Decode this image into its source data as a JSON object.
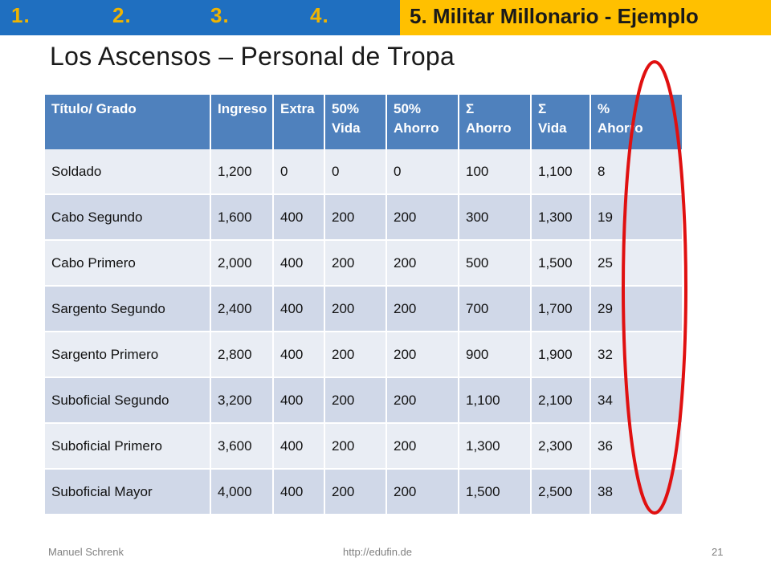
{
  "nav": {
    "items": [
      "1.",
      "2.",
      "3.",
      "4."
    ],
    "section_title": "5. Militar Millonario - Ejemplo"
  },
  "page_title": "Los Ascensos – Personal de Tropa",
  "table": {
    "headers": [
      "Título/ Grado",
      "Ingreso",
      "Extra",
      "50%\nVida",
      "50%\nAhorro",
      " Σ\nAhorro",
      "Σ\nVida",
      "%\nAhorro"
    ],
    "rows": [
      [
        "Soldado",
        "1,200",
        "0",
        "0",
        "0",
        "100",
        "1,100",
        "8"
      ],
      [
        "Cabo Segundo",
        "1,600",
        "400",
        "200",
        "200",
        "300",
        "1,300",
        "19"
      ],
      [
        "Cabo Primero",
        "2,000",
        "400",
        "200",
        "200",
        "500",
        "1,500",
        "25"
      ],
      [
        "Sargento Segundo",
        "2,400",
        "400",
        "200",
        "200",
        "700",
        "1,700",
        "29"
      ],
      [
        "Sargento Primero",
        "2,800",
        "400",
        "200",
        "200",
        "900",
        "1,900",
        "32"
      ],
      [
        "Suboficial Segundo",
        "3,200",
        "400",
        "200",
        "200",
        "1,100",
        "2,100",
        "34"
      ],
      [
        "Suboficial Primero",
        "3,600",
        "400",
        "200",
        "200",
        "1,300",
        "2,300",
        "36"
      ],
      [
        "Suboficial Mayor",
        "4,000",
        "400",
        "200",
        "200",
        "1,500",
        "2,500",
        "38"
      ]
    ]
  },
  "highlight_color": "#e01010",
  "footer": {
    "author": "Manuel Schrenk",
    "url": "http://edufin.de",
    "page_number": "21"
  }
}
